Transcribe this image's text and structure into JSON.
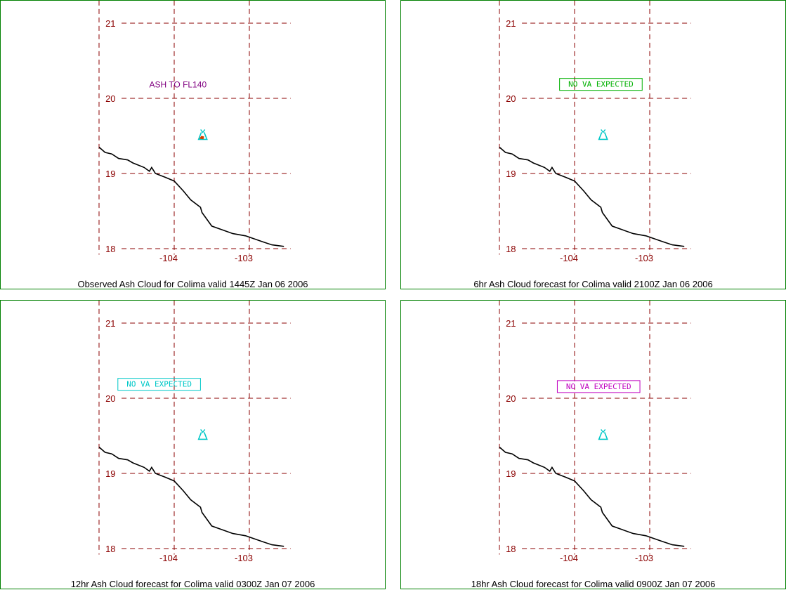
{
  "colors": {
    "border": "#008000",
    "grid": "#8b0000",
    "coast": "#000000",
    "volcano": "#00c8c8"
  },
  "map": {
    "lat_ticks": [
      "21",
      "20",
      "19",
      "18"
    ],
    "lon_ticks": [
      "-104",
      "-103"
    ]
  },
  "volcano": {
    "name": "Colima",
    "lon": -103.62,
    "lat": 19.51,
    "icon": "volcano-icon"
  },
  "coastline": [
    [
      -105.0,
      19.35
    ],
    [
      -104.92,
      19.28
    ],
    [
      -104.83,
      19.26
    ],
    [
      -104.74,
      19.2
    ],
    [
      -104.62,
      19.18
    ],
    [
      -104.55,
      19.14
    ],
    [
      -104.4,
      19.08
    ],
    [
      -104.33,
      19.03
    ],
    [
      -104.3,
      19.08
    ],
    [
      -104.25,
      19.0
    ],
    [
      -104.12,
      18.95
    ],
    [
      -104.0,
      18.9
    ],
    [
      -103.88,
      18.77
    ],
    [
      -103.78,
      18.65
    ],
    [
      -103.65,
      18.55
    ],
    [
      -103.63,
      18.48
    ],
    [
      -103.5,
      18.3
    ],
    [
      -103.36,
      18.25
    ],
    [
      -103.22,
      18.2
    ],
    [
      -103.05,
      18.17
    ],
    [
      -102.85,
      18.1
    ],
    [
      -102.7,
      18.05
    ],
    [
      -102.54,
      18.03
    ]
  ],
  "panels": [
    {
      "caption": "Observed Ash Cloud for Colima valid 1445Z Jan 06 2006",
      "label": {
        "text": "ASH TO FL140",
        "color": "#800080",
        "boxed": false,
        "lon": -103.95,
        "lat": 20.18
      },
      "observed_marker": true
    },
    {
      "caption": "6hr Ash Cloud forecast for Colima valid 2100Z Jan 06 2006",
      "label": {
        "text": "NO VA EXPECTED",
        "color": "#00b000",
        "boxed": true,
        "lon": -103.65,
        "lat": 20.19
      },
      "observed_marker": false
    },
    {
      "caption": "12hr Ash Cloud forecast for Colima valid 0300Z Jan 07 2006",
      "label": {
        "text": "NO VA EXPECTED",
        "color": "#00c8c8",
        "boxed": true,
        "lon": -104.2,
        "lat": 20.19
      },
      "observed_marker": false
    },
    {
      "caption": "18hr Ash Cloud forecast for Colima valid 0900Z Jan 07 2006",
      "label": {
        "text": "NO VA EXPECTED",
        "color": "#c000c0",
        "boxed": true,
        "lon": -103.68,
        "lat": 20.16
      },
      "observed_marker": false
    }
  ]
}
